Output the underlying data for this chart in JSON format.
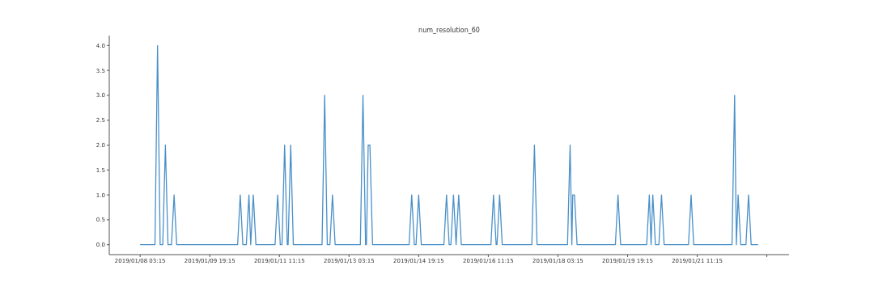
{
  "chart_data": {
    "type": "line",
    "title": "num_resolution_60",
    "x": [
      "2019-01-08T03:15",
      "2019-01-08T11:45",
      "2019-01-08T13:15",
      "2019-01-08T14:45",
      "2019-01-08T16:15",
      "2019-01-08T17:45",
      "2019-01-08T19:15",
      "2019-01-08T21:15",
      "2019-01-08T22:45",
      "2019-01-09T00:15",
      "2019-01-10T11:15",
      "2019-01-10T12:45",
      "2019-01-10T14:15",
      "2019-01-10T16:15",
      "2019-01-10T17:45",
      "2019-01-10T18:45",
      "2019-01-10T20:15",
      "2019-01-10T21:45",
      "2019-01-11T08:45",
      "2019-01-11T10:15",
      "2019-01-11T11:45",
      "2019-01-11T12:45",
      "2019-01-11T14:15",
      "2019-01-11T15:45",
      "2019-01-11T16:15",
      "2019-01-11T17:45",
      "2019-01-11T19:15",
      "2019-01-12T11:45",
      "2019-01-12T13:15",
      "2019-01-12T14:45",
      "2019-01-12T16:15",
      "2019-01-12T17:45",
      "2019-01-12T19:15",
      "2019-01-13T09:45",
      "2019-01-13T11:15",
      "2019-01-13T12:45",
      "2019-01-13T13:15",
      "2019-01-13T14:15",
      "2019-01-13T15:15",
      "2019-01-13T16:45",
      "2019-01-14T13:45",
      "2019-01-14T15:15",
      "2019-01-14T16:45",
      "2019-01-14T17:45",
      "2019-01-14T19:15",
      "2019-01-14T20:45",
      "2019-01-15T09:45",
      "2019-01-15T11:15",
      "2019-01-15T12:45",
      "2019-01-15T13:45",
      "2019-01-15T15:15",
      "2019-01-15T16:45",
      "2019-01-15T18:15",
      "2019-01-15T19:45",
      "2019-01-16T12:45",
      "2019-01-16T14:15",
      "2019-01-16T15:45",
      "2019-01-16T16:15",
      "2019-01-16T17:45",
      "2019-01-16T19:15",
      "2019-01-17T12:15",
      "2019-01-17T13:45",
      "2019-01-17T15:15",
      "2019-01-18T08:45",
      "2019-01-18T10:15",
      "2019-01-18T11:15",
      "2019-01-18T11:45",
      "2019-01-18T12:45",
      "2019-01-18T14:15",
      "2019-01-19T12:15",
      "2019-01-19T13:45",
      "2019-01-19T15:15",
      "2019-01-20T06:15",
      "2019-01-20T07:45",
      "2019-01-20T08:45",
      "2019-01-20T09:45",
      "2019-01-20T11:15",
      "2019-01-20T13:15",
      "2019-01-20T14:45",
      "2019-01-20T16:15",
      "2019-01-21T06:15",
      "2019-01-21T07:45",
      "2019-01-21T09:15",
      "2019-01-22T07:15",
      "2019-01-22T08:45",
      "2019-01-22T09:45",
      "2019-01-22T10:45",
      "2019-01-22T12:15",
      "2019-01-22T15:15",
      "2019-01-22T16:45",
      "2019-01-22T18:15",
      "2019-01-22T22:15"
    ],
    "series": [
      {
        "color": "#4a90c8",
        "values": [
          0,
          0,
          4,
          0,
          0,
          2,
          0,
          0,
          1,
          0,
          0,
          1,
          0,
          0,
          1,
          0,
          1,
          0,
          0,
          1,
          0,
          0,
          2,
          0,
          0,
          2,
          0,
          0,
          3,
          0,
          0,
          1,
          0,
          0,
          3,
          0,
          0,
          2,
          2,
          0,
          0,
          1,
          0,
          0,
          1,
          0,
          0,
          1,
          0,
          0,
          1,
          0,
          1,
          0,
          0,
          1,
          0,
          0,
          1,
          0,
          0,
          2,
          0,
          0,
          2,
          0,
          1,
          1,
          0,
          0,
          1,
          0,
          0,
          1,
          0,
          1,
          0,
          0,
          1,
          0,
          0,
          1,
          0,
          0,
          3,
          0,
          1,
          0,
          0,
          1,
          0,
          0
        ]
      }
    ],
    "xlim": [
      "2019-01-07T09:30",
      "2019-01-23T16:00"
    ],
    "xticks": [
      {
        "value": "2019-01-08T03:15",
        "label": "2019/01/08 03:15"
      },
      {
        "value": "2019-01-09T19:15",
        "label": "2019/01/09 19:15"
      },
      {
        "value": "2019-01-11T11:15",
        "label": "2019/01/11 11:15"
      },
      {
        "value": "2019-01-13T03:15",
        "label": "2019/01/13 03:15"
      },
      {
        "value": "2019-01-14T19:15",
        "label": "2019/01/14 19:15"
      },
      {
        "value": "2019-01-16T11:15",
        "label": "2019/01/16 11:15"
      },
      {
        "value": "2019-01-18T03:15",
        "label": "2019/01/18 03:15"
      },
      {
        "value": "2019-01-19T19:15",
        "label": "2019/01/19 19:15"
      },
      {
        "value": "2019-01-21T11:15",
        "label": "2019/01/21 11:15"
      },
      {
        "value": "2019-01-23T03:15",
        "label": null
      }
    ],
    "ylim": [
      -0.2,
      4.2
    ],
    "yticks": [
      {
        "value": 0,
        "label": "0.0"
      },
      {
        "value": 0.5,
        "label": "0.5"
      },
      {
        "value": 1,
        "label": "1.0"
      },
      {
        "value": 1.5,
        "label": "1.5"
      },
      {
        "value": 2,
        "label": "2.0"
      },
      {
        "value": 2.5,
        "label": "2.5"
      },
      {
        "value": 3,
        "label": "3.0"
      },
      {
        "value": 3.5,
        "label": "3.5"
      },
      {
        "value": 4,
        "label": "4.0"
      }
    ],
    "grid": false,
    "marker": "none",
    "line_style": "solid"
  }
}
